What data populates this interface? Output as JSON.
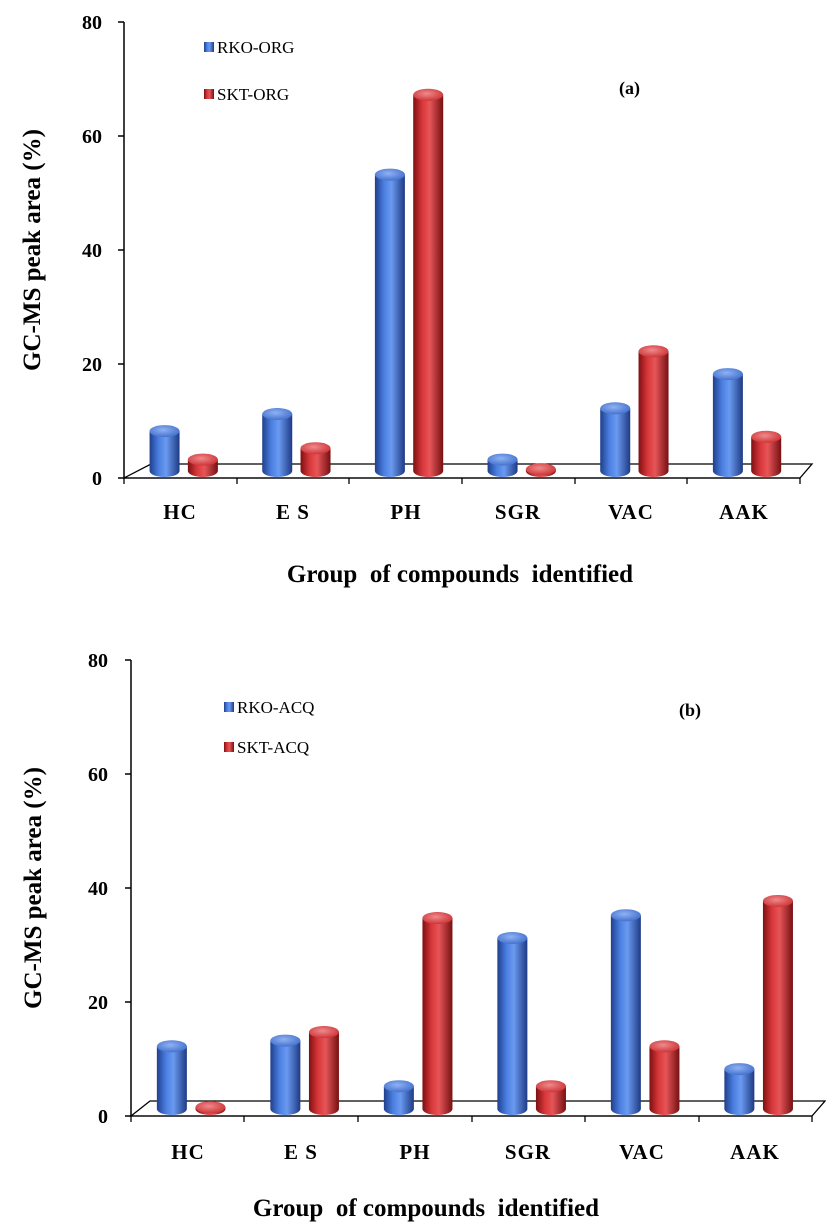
{
  "chart_data": [
    {
      "type": "bar",
      "panel_label": "(a)",
      "categories": [
        "HC",
        "E S",
        "PH",
        "SGR",
        "VAC",
        "AAK"
      ],
      "series": [
        {
          "name": "RKO-ORG",
          "values": [
            7,
            10,
            52,
            2,
            11,
            17
          ],
          "color": "#3a68c8"
        },
        {
          "name": "SKT-ORG",
          "values": [
            2,
            4,
            66,
            0.3,
            21,
            6
          ],
          "color": "#c8282a"
        }
      ],
      "yticks": [
        "0",
        "20",
        "40",
        "60",
        "80"
      ],
      "ylim": [
        0,
        80
      ],
      "xlabel": "Group  of compounds  identified",
      "ylabel": "GC-MS peak area (%)",
      "grid": false,
      "legend_position": "top-left"
    },
    {
      "type": "bar",
      "panel_label": "(b)",
      "categories": [
        "HC",
        "E S",
        "PH",
        "SGR",
        "VAC",
        "AAK"
      ],
      "series": [
        {
          "name": "RKO-ACQ",
          "values": [
            11,
            12,
            4,
            30,
            34,
            7
          ],
          "color": "#3a68c8"
        },
        {
          "name": "SKT-ACQ",
          "values": [
            0.3,
            13.5,
            33.5,
            4,
            11,
            36.5
          ],
          "color": "#c8282a"
        }
      ],
      "yticks": [
        "0",
        "20",
        "40",
        "60",
        "80"
      ],
      "ylim": [
        0,
        80
      ],
      "xlabel": "Group  of compounds  identified",
      "ylabel": "GC-MS peak area (%)",
      "grid": false,
      "legend_position": "top-left"
    }
  ]
}
